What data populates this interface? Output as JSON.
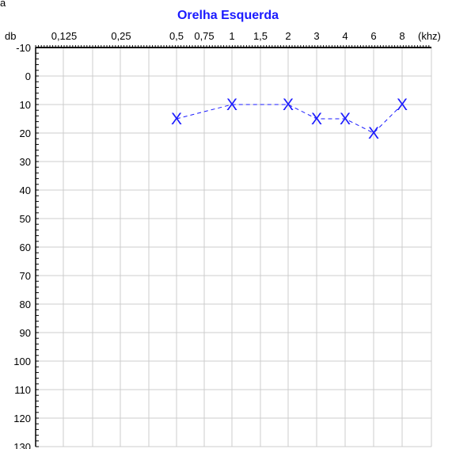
{
  "corner_text": "a",
  "chart_data": {
    "type": "scatter",
    "title": "Orelha Esquerda",
    "xlabel": "(khz)",
    "ylabel": "db",
    "x_tick_labels": [
      "0,125",
      "0,25",
      "0,5",
      "0,75",
      "1",
      "1,5",
      "2",
      "3",
      "4",
      "6",
      "8"
    ],
    "y_tick_labels": [
      "-10",
      "0",
      "10",
      "20",
      "30",
      "40",
      "50",
      "60",
      "70",
      "80",
      "90",
      "100",
      "110",
      "120",
      "130"
    ],
    "ylim": [
      -10,
      130
    ],
    "y_inverted": true,
    "grid": true,
    "marker": "X",
    "series": [
      {
        "x": [
          "0,5",
          "1",
          "2",
          "3",
          "4",
          "6",
          "8"
        ],
        "y": [
          15,
          10,
          10,
          15,
          15,
          20,
          10
        ]
      }
    ],
    "colors": {
      "series": "#1a1aff",
      "title": "#1a1aff",
      "grid": "#cccccc",
      "axis": "#000000"
    }
  }
}
